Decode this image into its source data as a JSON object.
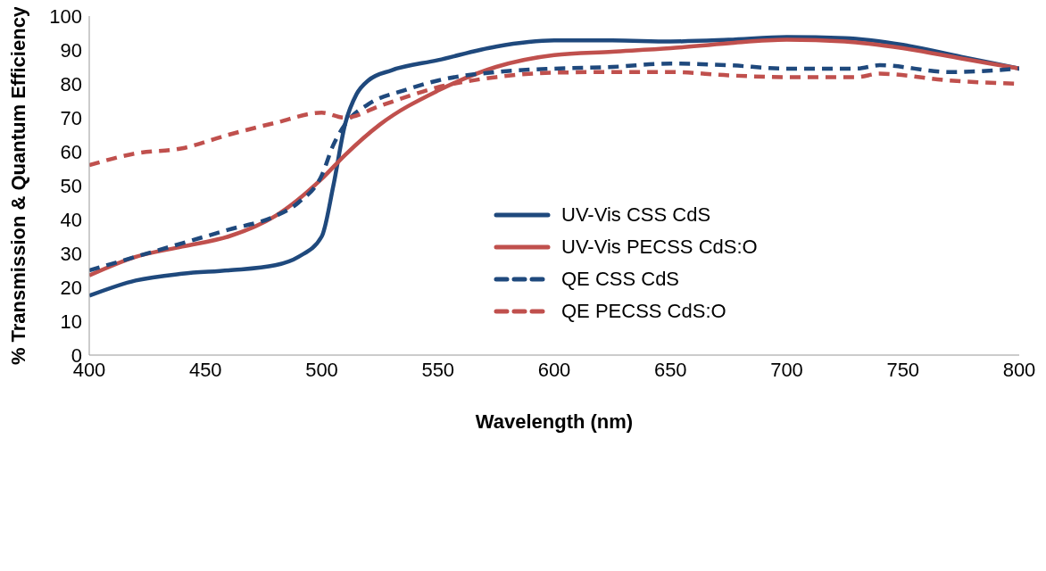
{
  "chart_data": {
    "type": "line",
    "xlabel": "Wavelength (nm)",
    "ylabel": "% Transmission & Quantum Efficiency",
    "xlim": [
      400,
      800
    ],
    "xticks": [
      400,
      450,
      500,
      550,
      600,
      650,
      700,
      750,
      800
    ],
    "ylim": [
      0,
      100
    ],
    "yticks": [
      0,
      10,
      20,
      30,
      40,
      50,
      60,
      70,
      80,
      90,
      100
    ],
    "grid": false,
    "legend": "right",
    "marker": "none",
    "series": [
      {
        "name": "UV-Vis CSS CdS",
        "color": "#1f497d",
        "line_style": "solid",
        "x": [
          400,
          420,
          440,
          460,
          480,
          490,
          500,
          505,
          510,
          515,
          520,
          530,
          550,
          575,
          600,
          625,
          650,
          675,
          700,
          725,
          750,
          775,
          800
        ],
        "values": [
          17.5,
          22,
          24,
          25,
          26.5,
          29,
          35,
          50,
          68,
          77,
          81,
          84,
          87,
          91,
          92.8,
          92.8,
          92.5,
          93,
          93.8,
          93.5,
          91.5,
          88,
          84.5
        ]
      },
      {
        "name": "UV-Vis PECSS CdS:O",
        "color": "#c0504d",
        "line_style": "solid",
        "x": [
          400,
          420,
          440,
          460,
          480,
          500,
          510,
          525,
          550,
          575,
          600,
          625,
          650,
          675,
          700,
          725,
          750,
          775,
          800
        ],
        "values": [
          23.5,
          29,
          32,
          35,
          41,
          52,
          59,
          68,
          78,
          85,
          88.5,
          89.5,
          90.5,
          92,
          93,
          92.5,
          90.5,
          87.5,
          84.5
        ]
      },
      {
        "name": "QE CSS CdS",
        "color": "#1f497d",
        "line_style": "dashed",
        "x": [
          400,
          420,
          440,
          460,
          480,
          490,
          500,
          505,
          510,
          520,
          535,
          550,
          575,
          600,
          625,
          650,
          675,
          700,
          730,
          740,
          770,
          800
        ],
        "values": [
          25,
          29,
          33,
          37,
          41,
          45,
          53,
          62,
          68,
          74,
          78,
          81,
          83.5,
          84.5,
          85,
          86,
          85.5,
          84.5,
          84.5,
          85.5,
          83.5,
          84.5
        ]
      },
      {
        "name": "QE PECSS CdS:O",
        "color": "#c0504d",
        "line_style": "dashed",
        "x": [
          400,
          420,
          440,
          460,
          480,
          500,
          510,
          525,
          550,
          575,
          600,
          625,
          650,
          675,
          700,
          730,
          740,
          770,
          800
        ],
        "values": [
          56,
          59.5,
          61,
          65,
          68.5,
          71.5,
          70,
          73.5,
          79,
          82,
          83.3,
          83.5,
          83.5,
          82.5,
          82,
          82,
          83,
          81,
          80
        ]
      }
    ]
  }
}
